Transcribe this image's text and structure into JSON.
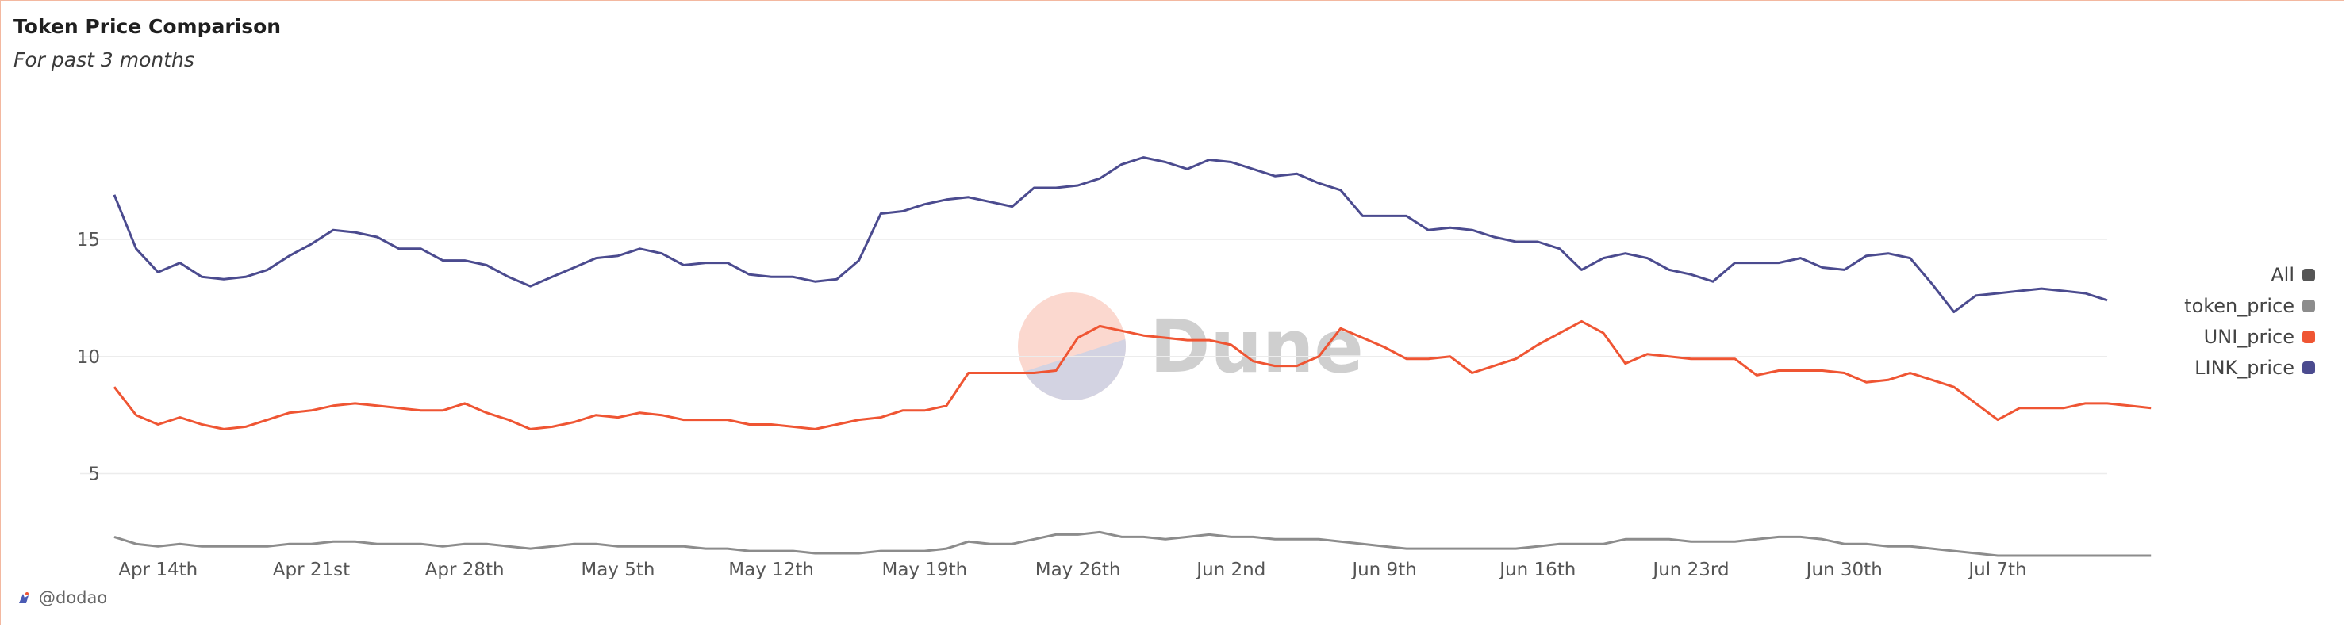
{
  "header": {
    "title": "Token Price Comparison",
    "subtitle": "For past 3 months"
  },
  "legend": {
    "items": [
      {
        "label": "All",
        "color": "#555555"
      },
      {
        "label": "token_price",
        "color": "#8c8c8c"
      },
      {
        "label": "UNI_price",
        "color": "#ef5533"
      },
      {
        "label": "LINK_price",
        "color": "#4b4b8f"
      }
    ]
  },
  "footer": {
    "attribution": "@dodao"
  },
  "watermark": {
    "text": "Dune"
  },
  "chart_data": {
    "type": "line",
    "ylim": [
      1.5,
      19.5
    ],
    "yticks": [
      5,
      10,
      15
    ],
    "xtick_labels": [
      "Apr 14th",
      "Apr 21st",
      "Apr 28th",
      "May 5th",
      "May 12th",
      "May 19th",
      "May 26th",
      "Jun 2nd",
      "Jun 9th",
      "Jun 16th",
      "Jun 23rd",
      "Jun 30th",
      "Jul 7th"
    ],
    "xtick_index": [
      2,
      9,
      16,
      23,
      30,
      37,
      44,
      51,
      58,
      65,
      72,
      79,
      86
    ],
    "grid": true,
    "legend_position": "right",
    "series": [
      {
        "name": "LINK_price",
        "color": "#4b4b8f",
        "values": [
          16.9,
          14.6,
          13.6,
          14.0,
          13.4,
          13.3,
          13.4,
          13.7,
          14.3,
          14.8,
          15.4,
          15.3,
          15.1,
          14.6,
          14.6,
          14.1,
          14.1,
          13.9,
          13.4,
          13.0,
          13.4,
          13.8,
          14.2,
          14.3,
          14.6,
          14.4,
          13.9,
          14.0,
          14.0,
          13.5,
          13.4,
          13.4,
          13.2,
          13.3,
          14.1,
          16.1,
          16.2,
          16.5,
          16.7,
          16.8,
          16.6,
          16.4,
          17.2,
          17.2,
          17.3,
          17.6,
          18.2,
          18.5,
          18.3,
          18.0,
          18.4,
          18.3,
          18.0,
          17.7,
          17.8,
          17.4,
          17.1,
          16.0,
          16.0,
          16.0,
          15.4,
          15.5,
          15.4,
          15.1,
          14.9,
          14.9,
          14.6,
          13.7,
          14.2,
          14.4,
          14.2,
          13.7,
          13.5,
          13.2,
          14.0,
          14.0,
          14.0,
          14.2,
          13.8,
          13.7,
          14.3,
          14.4,
          14.2,
          13.1,
          11.9,
          12.6,
          12.7,
          12.8,
          12.9,
          12.8,
          12.7,
          12.4
        ]
      },
      {
        "name": "UNI_price",
        "color": "#ef5533",
        "values": [
          8.7,
          7.5,
          7.1,
          7.4,
          7.1,
          6.9,
          7.0,
          7.3,
          7.6,
          7.7,
          7.9,
          8.0,
          7.9,
          7.8,
          7.7,
          7.7,
          8.0,
          7.6,
          7.3,
          6.9,
          7.0,
          7.2,
          7.5,
          7.4,
          7.6,
          7.5,
          7.3,
          7.3,
          7.3,
          7.1,
          7.1,
          7.0,
          6.9,
          7.1,
          7.3,
          7.4,
          7.7,
          7.7,
          7.9,
          9.3,
          9.3,
          9.3,
          9.3,
          9.4,
          10.8,
          11.3,
          11.1,
          10.9,
          10.8,
          10.7,
          10.7,
          10.5,
          9.8,
          9.6,
          9.6,
          10.0,
          11.2,
          10.8,
          10.4,
          9.9,
          9.9,
          10.0,
          9.3,
          9.6,
          9.9,
          10.5,
          11.0,
          11.5,
          11.0,
          9.7,
          10.1,
          10.0,
          9.9,
          9.9,
          9.9,
          9.2,
          9.4,
          9.4,
          9.4,
          9.3,
          8.9,
          9.0,
          9.3,
          9.0,
          8.7,
          8.0,
          7.3,
          7.8,
          7.8,
          7.8,
          8.0,
          8.0,
          7.9,
          7.8
        ]
      },
      {
        "name": "token_price",
        "color": "#8c8c8c",
        "values": [
          2.3,
          2.0,
          1.9,
          2.0,
          1.9,
          1.9,
          1.9,
          1.9,
          2.0,
          2.0,
          2.1,
          2.1,
          2.0,
          2.0,
          2.0,
          1.9,
          2.0,
          2.0,
          1.9,
          1.8,
          1.9,
          2.0,
          2.0,
          1.9,
          1.9,
          1.9,
          1.9,
          1.8,
          1.8,
          1.7,
          1.7,
          1.7,
          1.6,
          1.6,
          1.6,
          1.7,
          1.7,
          1.7,
          1.8,
          2.1,
          2.0,
          2.0,
          2.2,
          2.4,
          2.4,
          2.5,
          2.3,
          2.3,
          2.2,
          2.3,
          2.4,
          2.3,
          2.3,
          2.2,
          2.2,
          2.2,
          2.1,
          2.0,
          1.9,
          1.8,
          1.8,
          1.8,
          1.8,
          1.8,
          1.8,
          1.9,
          2.0,
          2.0,
          2.0,
          2.2,
          2.2,
          2.2,
          2.1,
          2.1,
          2.1,
          2.2,
          2.3,
          2.3,
          2.2,
          2.0,
          2.0,
          1.9,
          1.9,
          1.8,
          1.7,
          1.6,
          1.5,
          1.5,
          1.5,
          1.5,
          1.5,
          1.5,
          1.5,
          1.5
        ]
      }
    ]
  }
}
